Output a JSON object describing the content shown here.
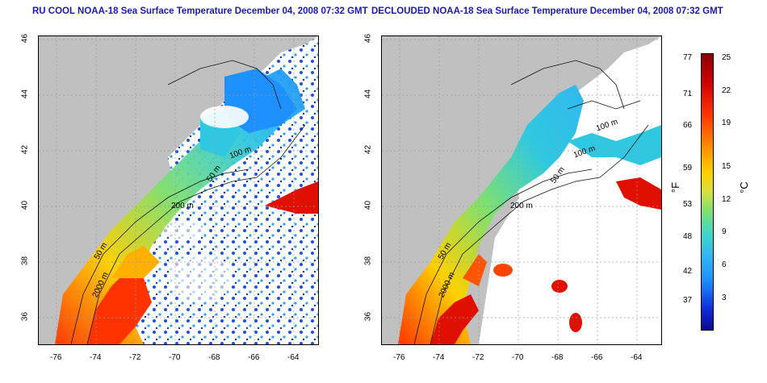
{
  "left_panel": {
    "title": "RU COOL NOAA-18 Sea Surface Temperature December 04, 2008 07:32 GMT",
    "contours": [
      "100 m",
      "50 m",
      "200 m",
      "50 m",
      "2000 m"
    ]
  },
  "right_panel": {
    "title": "DECLOUDED NOAA-18 Sea Surface Temperature December 04, 2008 07:32 GMT",
    "contours": [
      "100 m",
      "100 m",
      "50 m",
      "200 m",
      "50 m",
      "2000 m"
    ]
  },
  "axes": {
    "x_ticks": [
      "-76",
      "-74",
      "-72",
      "-70",
      "-68",
      "-66",
      "-64"
    ],
    "y_ticks": [
      "46",
      "44",
      "42",
      "40",
      "38",
      "36"
    ]
  },
  "colorbar": {
    "fahrenheit_label": "°F",
    "celsius_label": "°C",
    "fahrenheit_ticks": [
      "77",
      "71",
      "66",
      "59",
      "53",
      "48",
      "42",
      "37"
    ],
    "celsius_ticks": [
      "25",
      "22",
      "19",
      "15",
      "12",
      "9",
      "6",
      "3"
    ],
    "colors": [
      "#8b0000",
      "#ff3300",
      "#ffd000",
      "#80e070",
      "#30b8f0",
      "#1030e0",
      "#0a0a90"
    ]
  }
}
